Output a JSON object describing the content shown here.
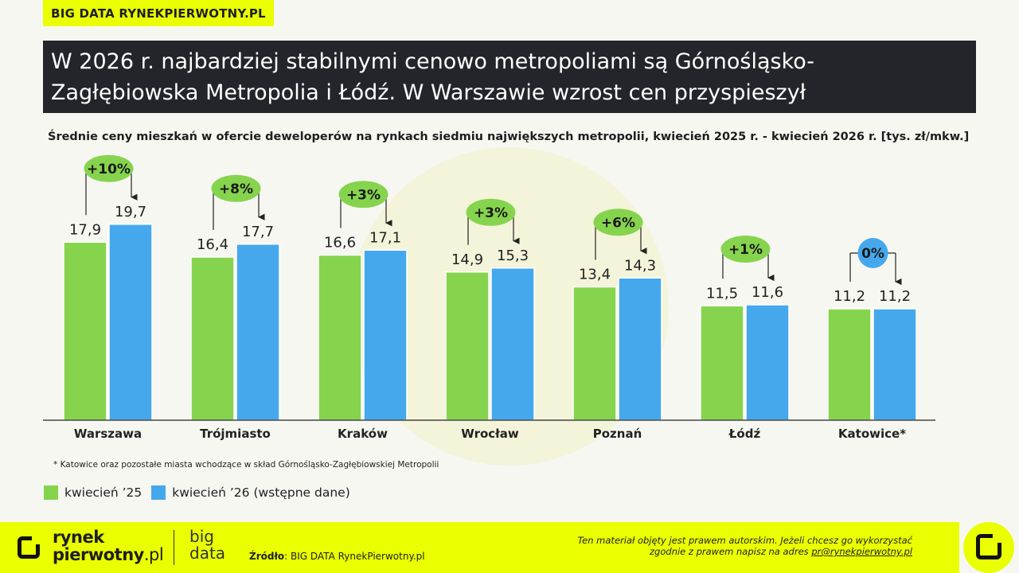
{
  "tag": "BIG DATA RYNEKPIERWOTNY.PL",
  "title_line1": "W 2026 r. najbardziej stabilnymi cenowo metropoliami są Górnośląsko-",
  "title_line2": "Zagłębiowska Metropolia i Łódź. W Warszawie wzrost cen przyspieszył",
  "subtitle": "Średnie ceny mieszkań w ofercie deweloperów na rynkach siedmiu największych metropolii, kwiecień 2025 r. - kwiecień 2026 r. [tys. zł/mkw.]",
  "footnote": "* Katowice oraz pozostałe miasta wchodzące w skład Górnośląsko-Zagłębiowskiej Metropolii",
  "legend": {
    "s1": "kwiecień ’25",
    "s2": "kwiecień ’26 (wstępne dane)"
  },
  "footer": {
    "brand_line1": "rynek",
    "brand_line2": "pierwotny",
    "brand_suffix": ".pl",
    "bigdata_line1": "big",
    "bigdata_line2": "data",
    "source_label": "Źródło",
    "source_text": ": BIG DATA RynekPierwotny.pl",
    "copyright_line1": "Ten materiał objęty jest prawem autorskim. Jeżeli chcesz go wykorzystać",
    "copyright_line2": "zgodnie z prawem napisz na adres ",
    "email": "pr@rynekpierwotny.pl"
  },
  "colors": {
    "green": "#86d44e",
    "blue": "#46a8ec",
    "badge_green": "#86d44e",
    "badge_blue": "#46a8ec",
    "accent": "#eaff00",
    "title_bg": "#23252b"
  },
  "chart_data": {
    "type": "bar",
    "categories": [
      "Warszawa",
      "Trójmiasto",
      "Kraków",
      "Wrocław",
      "Poznań",
      "Łódź",
      "Katowice*"
    ],
    "series": [
      {
        "name": "kwiecień ’25",
        "values": [
          17.9,
          16.4,
          16.6,
          14.9,
          13.4,
          11.5,
          11.2
        ],
        "labels": [
          "17,9",
          "16,4",
          "16,6",
          "14,9",
          "13,4",
          "11,5",
          "11,2"
        ]
      },
      {
        "name": "kwiecień ’26 (wstępne dane)",
        "values": [
          19.7,
          17.7,
          17.1,
          15.3,
          14.3,
          11.6,
          11.2
        ],
        "labels": [
          "19,7",
          "17,7",
          "17,1",
          "15,3",
          "14,3",
          "11,6",
          "11,2"
        ]
      }
    ],
    "changes": [
      "+10%",
      "+8%",
      "+3%",
      "+3%",
      "+6%",
      "+1%",
      "0%"
    ],
    "change_colors": [
      "green",
      "green",
      "green",
      "green",
      "green",
      "green",
      "blue"
    ],
    "ylim": [
      0,
      20
    ],
    "grid": false
  }
}
